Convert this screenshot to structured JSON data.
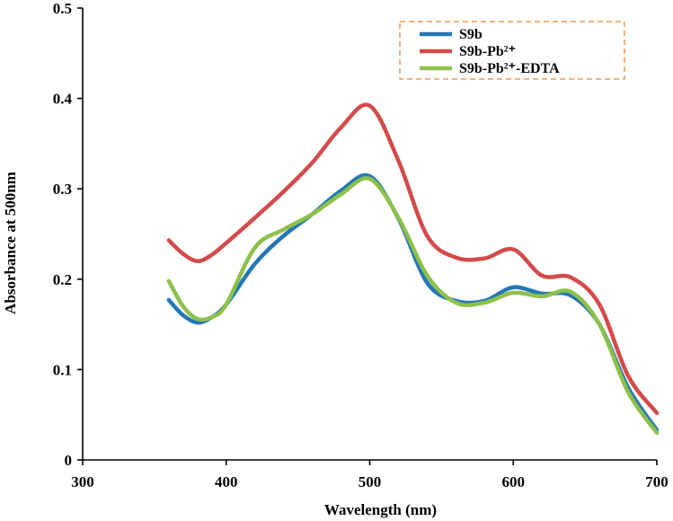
{
  "chart_data": {
    "type": "line",
    "title": "",
    "xlabel": "Wavelength (nm)",
    "ylabel": "Absorbance  at 500nm",
    "xlim": [
      300,
      700
    ],
    "ylim": [
      0,
      0.5
    ],
    "xticks": [
      300,
      400,
      500,
      600,
      700
    ],
    "yticks": [
      0,
      0.1,
      0.2,
      0.3,
      0.4,
      0.5
    ],
    "xtick_labels": [
      "300",
      "400",
      "500",
      "600",
      "700"
    ],
    "ytick_labels": [
      "0",
      "0.1",
      "0.2",
      "0.3",
      "0.4",
      "0.5"
    ],
    "grid": false,
    "legend_position": "top-right",
    "series": [
      {
        "name": "S9b",
        "color": "#2477b5",
        "x": [
          360,
          370,
          380,
          390,
          400,
          420,
          440,
          460,
          480,
          500,
          520,
          540,
          560,
          580,
          600,
          620,
          640,
          660,
          680,
          700
        ],
        "y": [
          0.177,
          0.16,
          0.152,
          0.158,
          0.172,
          0.217,
          0.248,
          0.272,
          0.298,
          0.314,
          0.267,
          0.196,
          0.176,
          0.176,
          0.191,
          0.184,
          0.182,
          0.15,
          0.08,
          0.033
        ]
      },
      {
        "name": "S9b-Pb²⁺",
        "color": "#d44a4a",
        "x": [
          360,
          370,
          380,
          390,
          400,
          420,
          440,
          460,
          480,
          500,
          520,
          540,
          560,
          580,
          600,
          620,
          640,
          660,
          680,
          700
        ],
        "y": [
          0.243,
          0.228,
          0.22,
          0.227,
          0.24,
          0.268,
          0.297,
          0.329,
          0.368,
          0.392,
          0.331,
          0.248,
          0.224,
          0.223,
          0.233,
          0.204,
          0.202,
          0.172,
          0.093,
          0.052
        ]
      },
      {
        "name": "S9b-Pb²⁺-EDTA",
        "color": "#8dc04a",
        "x": [
          360,
          370,
          380,
          390,
          400,
          420,
          440,
          460,
          480,
          500,
          520,
          540,
          560,
          580,
          600,
          620,
          640,
          660,
          680,
          700
        ],
        "y": [
          0.198,
          0.17,
          0.156,
          0.158,
          0.172,
          0.235,
          0.255,
          0.272,
          0.294,
          0.311,
          0.268,
          0.204,
          0.174,
          0.174,
          0.185,
          0.181,
          0.186,
          0.15,
          0.075,
          0.03
        ]
      }
    ]
  }
}
